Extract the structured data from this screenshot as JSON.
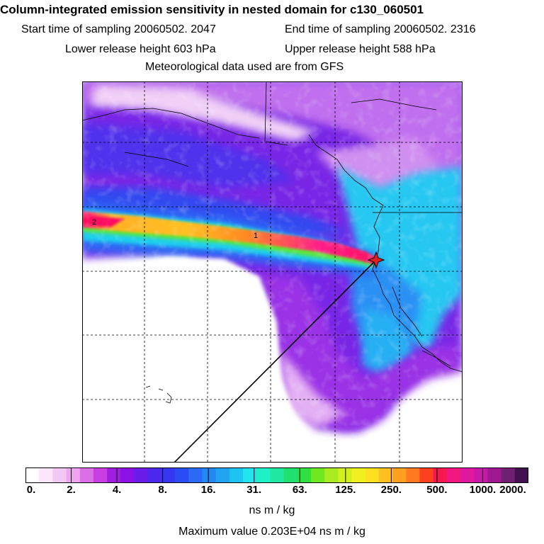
{
  "header": {
    "title": "Column-integrated emission sensitivity in nested domain for c130_060501",
    "start_label": "Start time of sampling 20060502.  2047",
    "end_label": "End time of sampling 20060502.  2316",
    "lower_label": "Lower release height  603 hPa",
    "upper_label": "Upper release height  588 hPa",
    "met_label": "Meteorological data used are from GFS"
  },
  "map": {
    "contour_labels": [
      "2",
      "1"
    ],
    "release_marker": "star-icon"
  },
  "colorbar": {
    "ticks": [
      "0.",
      "2.",
      "4.",
      "8.",
      "16.",
      "31.",
      "63.",
      "125.",
      "250.",
      "500.",
      "1000.",
      "2000."
    ],
    "colors": [
      "#ffffff",
      "#fbe6fb",
      "#f4c8f4",
      "#eda6ef",
      "#dc6ee6",
      "#c83ee0",
      "#a01ee0",
      "#8a12e6",
      "#6a1ce8",
      "#4a28ee",
      "#3438f2",
      "#2a4cf4",
      "#2a6af4",
      "#2288f4",
      "#20a4f2",
      "#1ec4f0",
      "#20e4ee",
      "#20f0c8",
      "#20e8a0",
      "#20e070",
      "#30e040",
      "#70e820",
      "#a8ec20",
      "#d0f020",
      "#f0f020",
      "#ffe020",
      "#ffc020",
      "#ffa020",
      "#ff7a20",
      "#ff4020",
      "#f81850",
      "#f01880",
      "#e018a0",
      "#c818a8",
      "#a01890",
      "#702070",
      "#401050"
    ],
    "units": "ns m / kg"
  },
  "footer": {
    "max_value_label": "Maximum value  0.203E+04 ns m / kg"
  }
}
